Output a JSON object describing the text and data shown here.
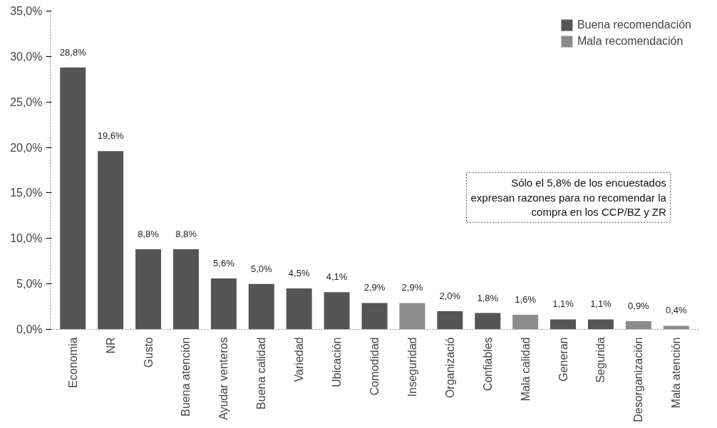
{
  "chart_data": {
    "type": "bar",
    "categories": [
      "Economia",
      "NR",
      "Gusto",
      "Buena atención",
      "Ayudar venteros",
      "Buena calidad",
      "Variedad",
      "Ubicación",
      "Comodidad",
      "Inseguridad",
      "Organizació",
      "Confiables",
      "Mala calidad",
      "Generan",
      "Segurida",
      "Desorganización",
      "Mala atención"
    ],
    "series": [
      {
        "name": "Buena recomendación",
        "color": "#555555",
        "values": [
          28.8,
          19.6,
          8.8,
          8.8,
          5.6,
          5.0,
          4.5,
          4.1,
          2.9,
          null,
          2.0,
          1.8,
          null,
          1.1,
          1.1,
          null,
          null
        ],
        "value_labels": [
          "28,8%",
          "19,6%",
          "8,8%",
          "8,8%",
          "5,6%",
          "5,0%",
          "4,5%",
          "4,1%",
          "2,9%",
          null,
          "2,0%",
          "1,8%",
          null,
          "1,1%",
          "1,1%",
          null,
          null
        ]
      },
      {
        "name": "Mala recomendación",
        "color": "#8c8c8c",
        "values": [
          null,
          null,
          null,
          null,
          null,
          null,
          null,
          null,
          null,
          2.9,
          null,
          null,
          1.6,
          null,
          null,
          0.9,
          0.4
        ],
        "value_labels": [
          null,
          null,
          null,
          null,
          null,
          null,
          null,
          null,
          null,
          "2,9%",
          null,
          null,
          "1,6%",
          null,
          null,
          "0,9%",
          "0,4%"
        ]
      }
    ],
    "ylim": [
      0,
      35
    ],
    "yticks": [
      {
        "value": 0,
        "label": "0,0%"
      },
      {
        "value": 5,
        "label": "5,0%"
      },
      {
        "value": 10,
        "label": "10,0%"
      },
      {
        "value": 15,
        "label": "15,0%"
      },
      {
        "value": 20,
        "label": "20,0%"
      },
      {
        "value": 25,
        "label": "25,0%"
      },
      {
        "value": 30,
        "label": "30,0%"
      },
      {
        "value": 35,
        "label": "35,0%"
      }
    ],
    "annotations": [
      "Sólo el 5,8% de los encuestados\nexpresan razones para no recomendar la\ncompra en los CCP/BZ y ZR"
    ],
    "legend": "top right",
    "grid": false
  }
}
